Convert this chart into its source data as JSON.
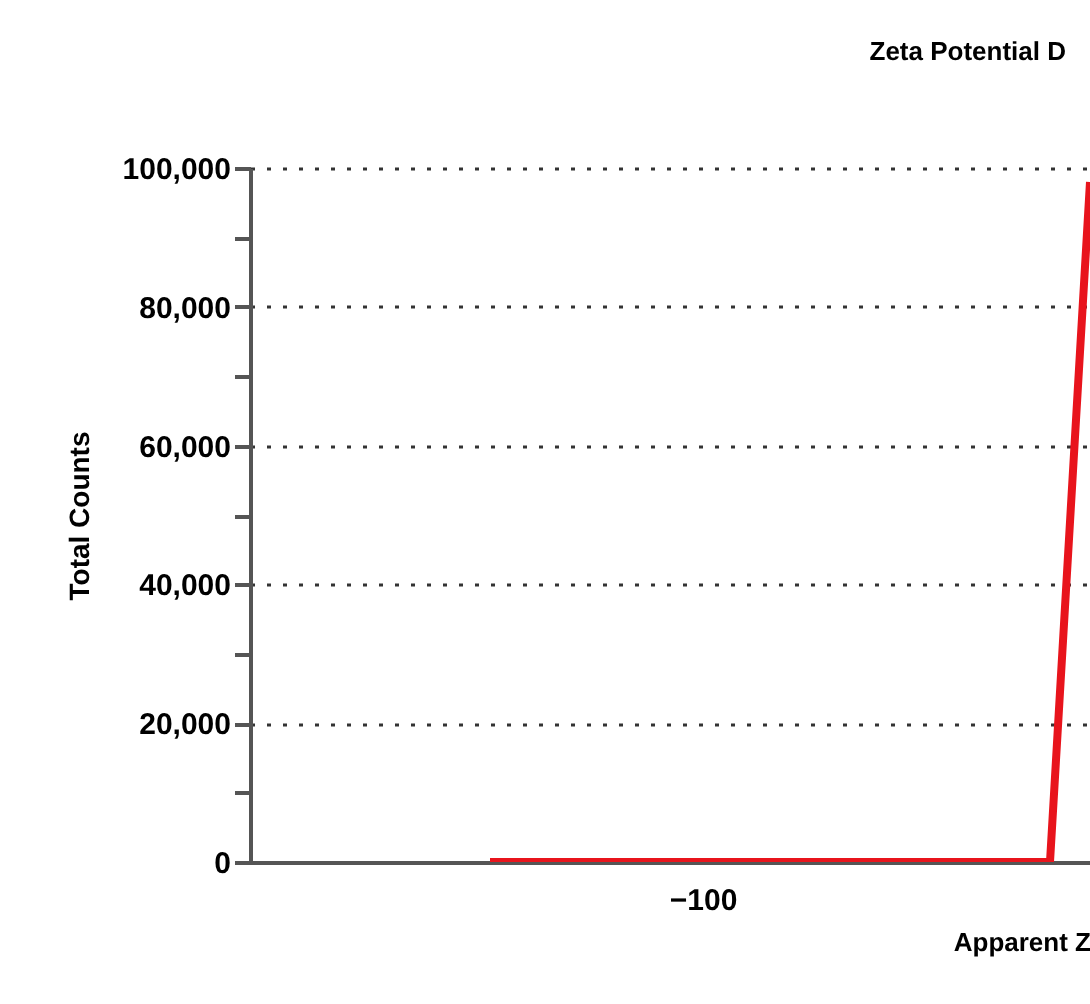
{
  "chart_data": {
    "type": "line",
    "title": "Zeta Potential D",
    "xlabel": "Apparent Z",
    "ylabel": "Total Counts",
    "categories": [
      null,
      null,
      null,
      null,
      null,
      null,
      null,
      null,
      null,
      null,
      null,
      null,
      null,
      null,
      null,
      null,
      null,
      null,
      null,
      null,
      null,
      null
    ],
    "series": [
      {
        "color": "#e8141c",
        "values": [
          null,
          null,
          null,
          null,
          null,
          null,
          0,
          0,
          0,
          0,
          0,
          0,
          0,
          0,
          0,
          0,
          0,
          0,
          0,
          0,
          0,
          98000
        ]
      }
    ],
    "annotations": [
      "−100"
    ],
    "ylim": [
      0,
      100000
    ],
    "yticks": [
      {
        "value": 0,
        "label": "0"
      },
      {
        "value": 10000,
        "label": null
      },
      {
        "value": 20000,
        "label": "20,000"
      },
      {
        "value": 30000,
        "label": null
      },
      {
        "value": 40000,
        "label": "40,000"
      },
      {
        "value": 50000,
        "label": null
      },
      {
        "value": 60000,
        "label": "60,000"
      },
      {
        "value": 70000,
        "label": null
      },
      {
        "value": 80000,
        "label": "80,000"
      },
      {
        "value": 90000,
        "label": null
      },
      {
        "value": 100000,
        "label": "100,000"
      }
    ],
    "grid": "y"
  }
}
